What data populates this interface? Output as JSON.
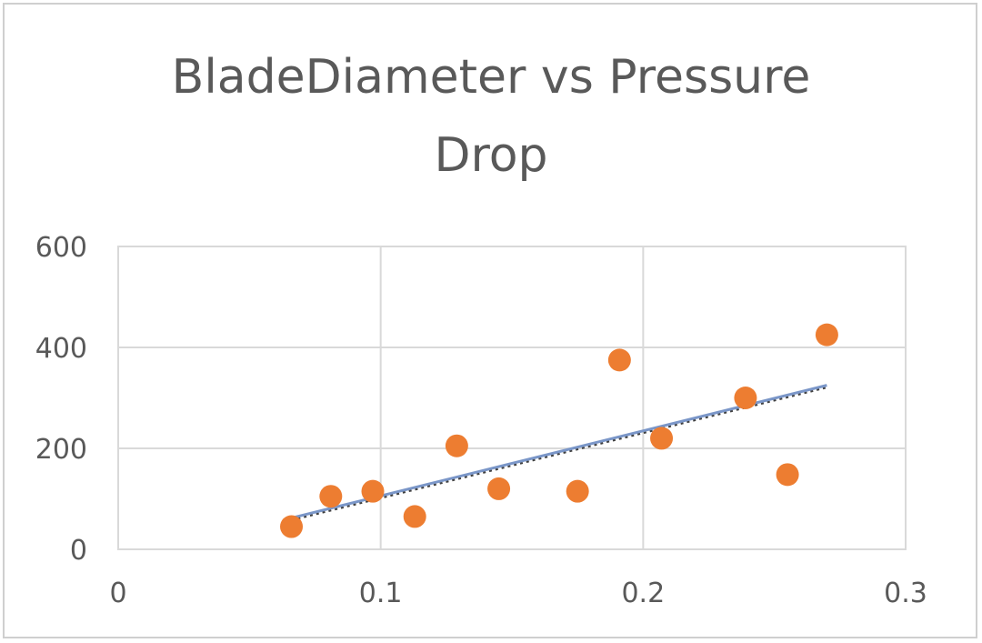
{
  "chart_data": {
    "type": "scatter",
    "title_lines": [
      "BladeDiameter vs Pressure",
      "Drop"
    ],
    "xlabel": "",
    "ylabel": "",
    "xlim": [
      0,
      0.3
    ],
    "ylim": [
      0,
      600
    ],
    "x_ticks": [
      "0",
      "0.1",
      "0.2",
      "0.3"
    ],
    "y_ticks": [
      "0",
      "200",
      "400",
      "600"
    ],
    "grid": true,
    "legend": "none",
    "colors": {
      "points": "#ed7d31",
      "trend_solid": "#7a96c8",
      "trend_dotted": "#404040",
      "grid": "#d9d9d9"
    },
    "series": [
      {
        "type": "scatter",
        "x": [
          0.066,
          0.081,
          0.097,
          0.113,
          0.129,
          0.145,
          0.175,
          0.191,
          0.207,
          0.239,
          0.255,
          0.27
        ],
        "y": [
          45,
          105,
          115,
          65,
          205,
          120,
          115,
          375,
          220,
          300,
          148,
          425
        ]
      }
    ],
    "trendline": {
      "x": [
        0.066,
        0.27
      ],
      "y": [
        62,
        325
      ]
    }
  }
}
